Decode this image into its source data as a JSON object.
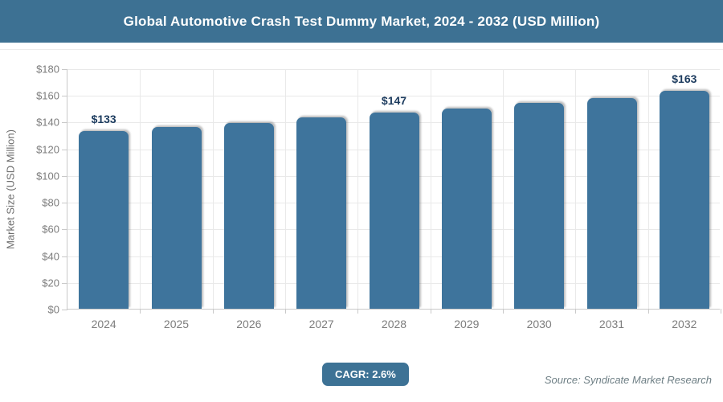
{
  "header": {
    "title": "Global Automotive Crash Test Dummy Market, 2024 - 2032 (USD Million)"
  },
  "chart_data": {
    "type": "bar",
    "title": "Global Automotive Crash Test Dummy Market, 2024 - 2032 (USD Million)",
    "categories": [
      "2024",
      "2025",
      "2026",
      "2027",
      "2028",
      "2029",
      "2030",
      "2031",
      "2032"
    ],
    "values": [
      133,
      136,
      139,
      143,
      147,
      150,
      154,
      158,
      163
    ],
    "bar_labels": [
      "$133",
      "",
      "",
      "",
      "$147",
      "",
      "",
      "",
      "$163"
    ],
    "xlabel": "",
    "ylabel": "Market Size (USD Million)",
    "ylim": [
      0,
      180
    ],
    "ytick_step": 20,
    "ytick_prefix": "$",
    "grid": true,
    "legend": false,
    "bar_color": "#3e749c"
  },
  "footer": {
    "cagr_label": "CAGR: 2.6%",
    "source": "Source: Syndicate Market Research"
  },
  "colors": {
    "header_bg": "#3d7193",
    "bar": "#3e749c",
    "badge_bg": "#3d7295",
    "value_label": "#1c3b5e",
    "axis_text": "#7d7d7d",
    "gridline": "#e9e9e9"
  }
}
